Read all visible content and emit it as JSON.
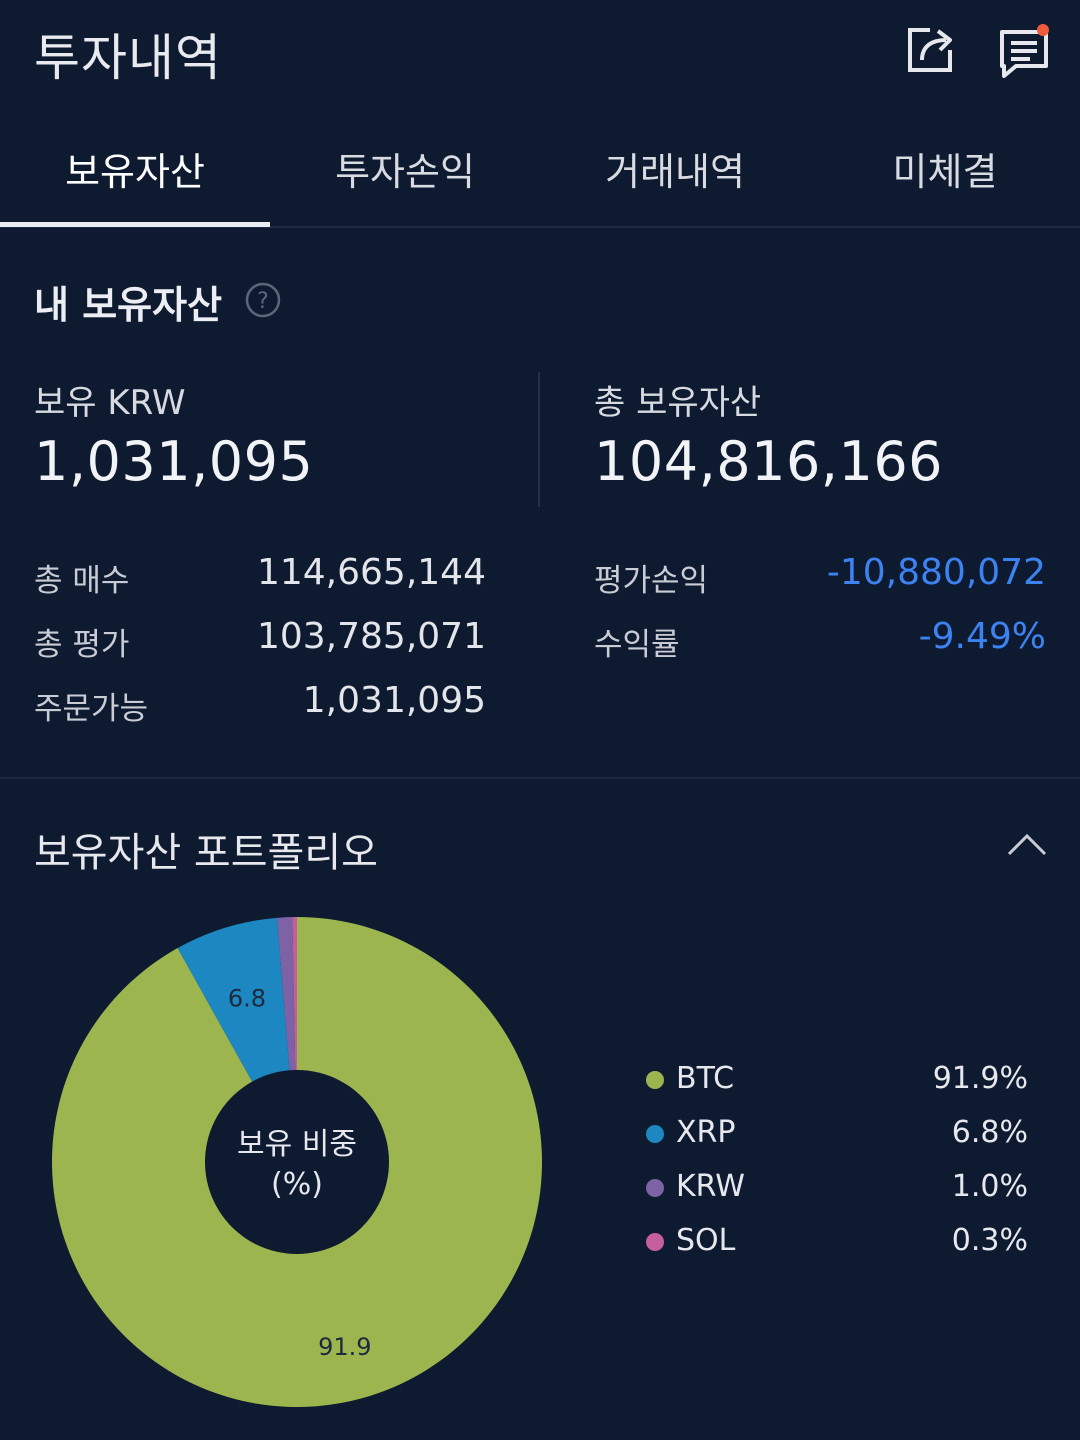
{
  "header": {
    "title": "투자내역",
    "share_icon": "share-icon",
    "notice_icon": "notice-icon"
  },
  "tabs": [
    {
      "label": "보유자산",
      "active": true
    },
    {
      "label": "투자손익",
      "active": false
    },
    {
      "label": "거래내역",
      "active": false
    },
    {
      "label": "미체결",
      "active": false
    }
  ],
  "summary": {
    "title": "내 보유자산",
    "help_icon": "help-icon",
    "krw_label": "보유 KRW",
    "krw_value": "1,031,095",
    "total_label": "총 보유자산",
    "total_value": "104,816,166",
    "rows_left": [
      {
        "label": "총 매수",
        "value": "114,665,144"
      },
      {
        "label": "총 평가",
        "value": "103,785,071"
      },
      {
        "label": "주문가능",
        "value": "1,031,095"
      }
    ],
    "rows_right": [
      {
        "label": "평가손익",
        "value": "-10,880,072"
      },
      {
        "label": "수익률",
        "value": "-9.49%"
      }
    ],
    "negative_color": "#3c82f0"
  },
  "portfolio": {
    "title": "보유자산 포트폴리오",
    "collapse_icon": "chevron-up-icon",
    "center_line1": "보유 비중",
    "center_line2": "(%)",
    "slice_label_btc": "91.9",
    "slice_label_xrp": "6.8",
    "legend": [
      {
        "name": "BTC",
        "pct": "91.9%",
        "color": "#9db54e"
      },
      {
        "name": "XRP",
        "pct": "6.8%",
        "color": "#1c87c0"
      },
      {
        "name": "KRW",
        "pct": "1.0%",
        "color": "#7e62a6"
      },
      {
        "name": "SOL",
        "pct": "0.3%",
        "color": "#c45f9c"
      }
    ]
  },
  "chart_data": {
    "type": "pie",
    "categories": [
      "BTC",
      "XRP",
      "KRW",
      "SOL"
    ],
    "values": [
      91.9,
      6.8,
      1.0,
      0.3
    ],
    "colors": [
      "#9db54e",
      "#1c87c0",
      "#7e62a6",
      "#c45f9c"
    ],
    "title": "보유 비중 (%)"
  }
}
